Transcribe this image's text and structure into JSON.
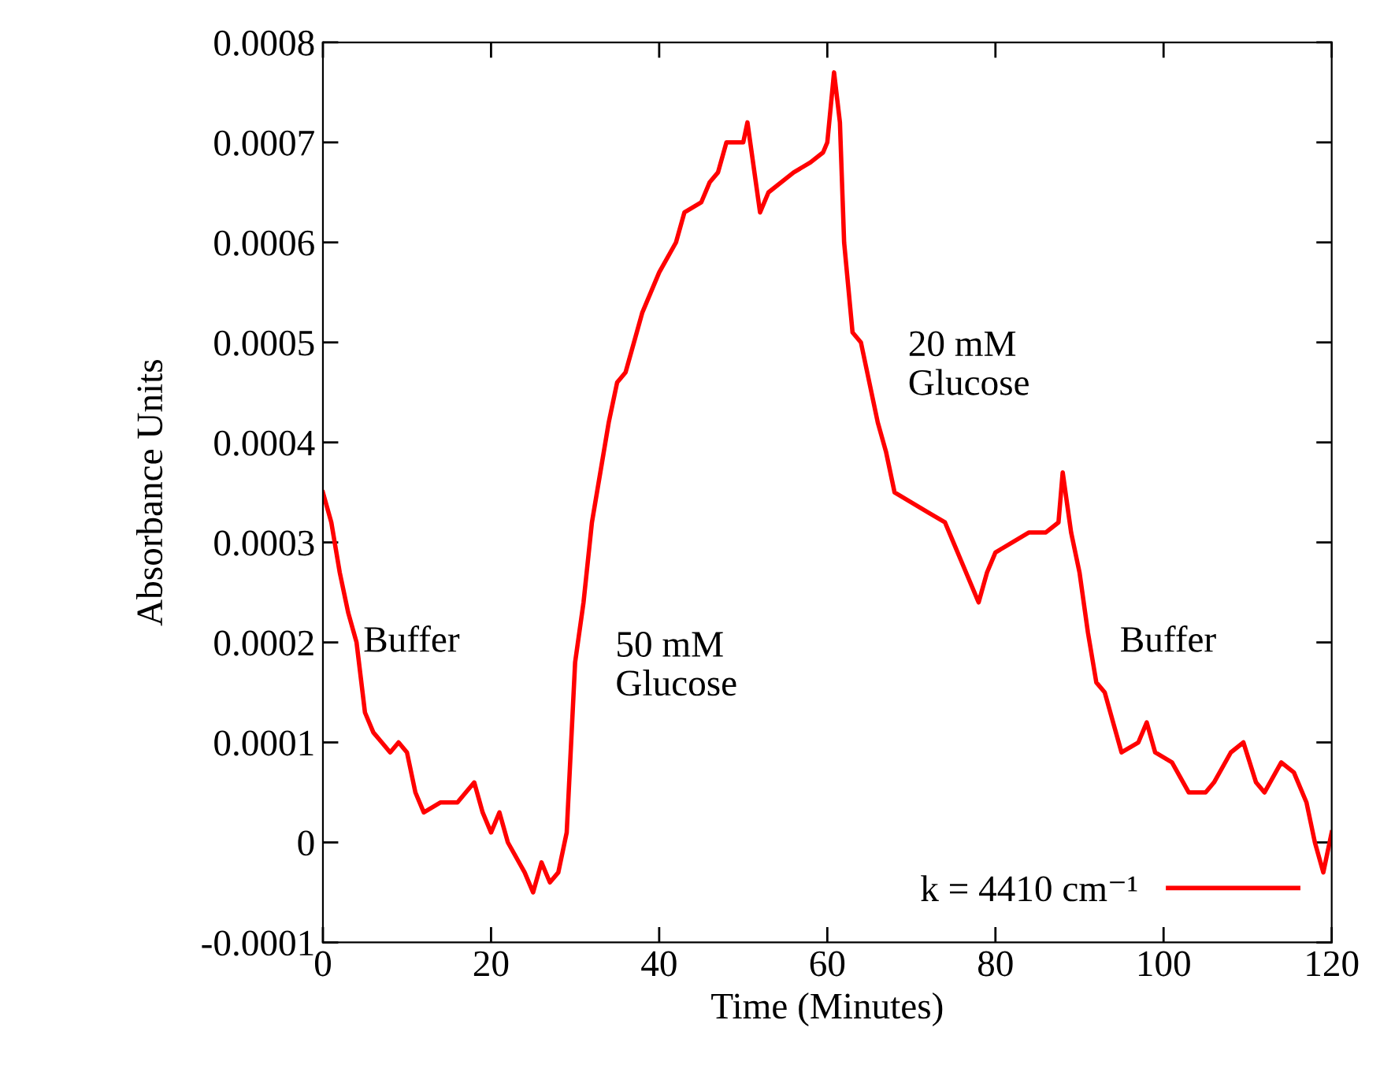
{
  "chart_data": {
    "type": "line",
    "xlabel": "Time (Minutes)",
    "ylabel": "Absorbance Units",
    "xlim": [
      0,
      120
    ],
    "xticks": [
      0,
      20,
      40,
      60,
      80,
      100,
      120
    ],
    "ylim": [
      -0.0001,
      0.0008
    ],
    "yticks": [
      -0.0001,
      0,
      0.0001,
      0.0002,
      0.0003,
      0.0004,
      0.0005,
      0.0006,
      0.0007,
      0.0008
    ],
    "grid": false,
    "legend": "bottom right",
    "marker": "none",
    "line_style": "solid",
    "annotations": [
      "Buffer",
      "50 mM\nGlucose",
      "20 mM\nGlucose",
      "Buffer"
    ],
    "series": [
      {
        "name": "k = 4410 cm⁻¹",
        "color": "#ff0000",
        "x": [
          0,
          1,
          2,
          3,
          4,
          5,
          6,
          7,
          8,
          9,
          10,
          11,
          12,
          14,
          16,
          18,
          19,
          20,
          21,
          22,
          24,
          25,
          26,
          27,
          28,
          29,
          30,
          31,
          32,
          33,
          34,
          35,
          36,
          37,
          38,
          40,
          42,
          43,
          45,
          46,
          47,
          48,
          50,
          50.5,
          52,
          53,
          56,
          58,
          59.5,
          60,
          60.8,
          61.5,
          62,
          63,
          64,
          65,
          66,
          67,
          68,
          70,
          72,
          74,
          75,
          76,
          78,
          79,
          80,
          82,
          84,
          86,
          87.5,
          88,
          89,
          90,
          91,
          92,
          93,
          94,
          95,
          97,
          98,
          99,
          101,
          103,
          105,
          106,
          108,
          109.5,
          111,
          112,
          114,
          115.5,
          117,
          118,
          119,
          120
        ],
        "values": [
          0.00035,
          0.00032,
          0.00027,
          0.00023,
          0.0002,
          0.00013,
          0.00011,
          0.0001,
          9e-05,
          0.0001,
          9e-05,
          5e-05,
          3e-05,
          4e-05,
          4e-05,
          6e-05,
          3e-05,
          1e-05,
          3e-05,
          0,
          -3e-05,
          -5e-05,
          -2e-05,
          -4e-05,
          -3e-05,
          1e-05,
          0.00018,
          0.00024,
          0.00032,
          0.00037,
          0.00042,
          0.00046,
          0.00047,
          0.0005,
          0.00053,
          0.00057,
          0.0006,
          0.00063,
          0.00064,
          0.00066,
          0.00067,
          0.0007,
          0.0007,
          0.00072,
          0.00063,
          0.00065,
          0.00067,
          0.00068,
          0.00069,
          0.0007,
          0.00077,
          0.00072,
          0.0006,
          0.00051,
          0.0005,
          0.00046,
          0.00042,
          0.00039,
          0.00035,
          0.00034,
          0.00033,
          0.00032,
          0.0003,
          0.00028,
          0.00024,
          0.00027,
          0.00029,
          0.0003,
          0.00031,
          0.00031,
          0.00032,
          0.00037,
          0.00031,
          0.00027,
          0.00021,
          0.00016,
          0.00015,
          0.00012,
          9e-05,
          0.0001,
          0.00012,
          9e-05,
          8e-05,
          5e-05,
          5e-05,
          6e-05,
          9e-05,
          0.0001,
          6e-05,
          5e-05,
          8e-05,
          7e-05,
          4e-05,
          0,
          -3e-05,
          1e-05
        ]
      }
    ]
  }
}
